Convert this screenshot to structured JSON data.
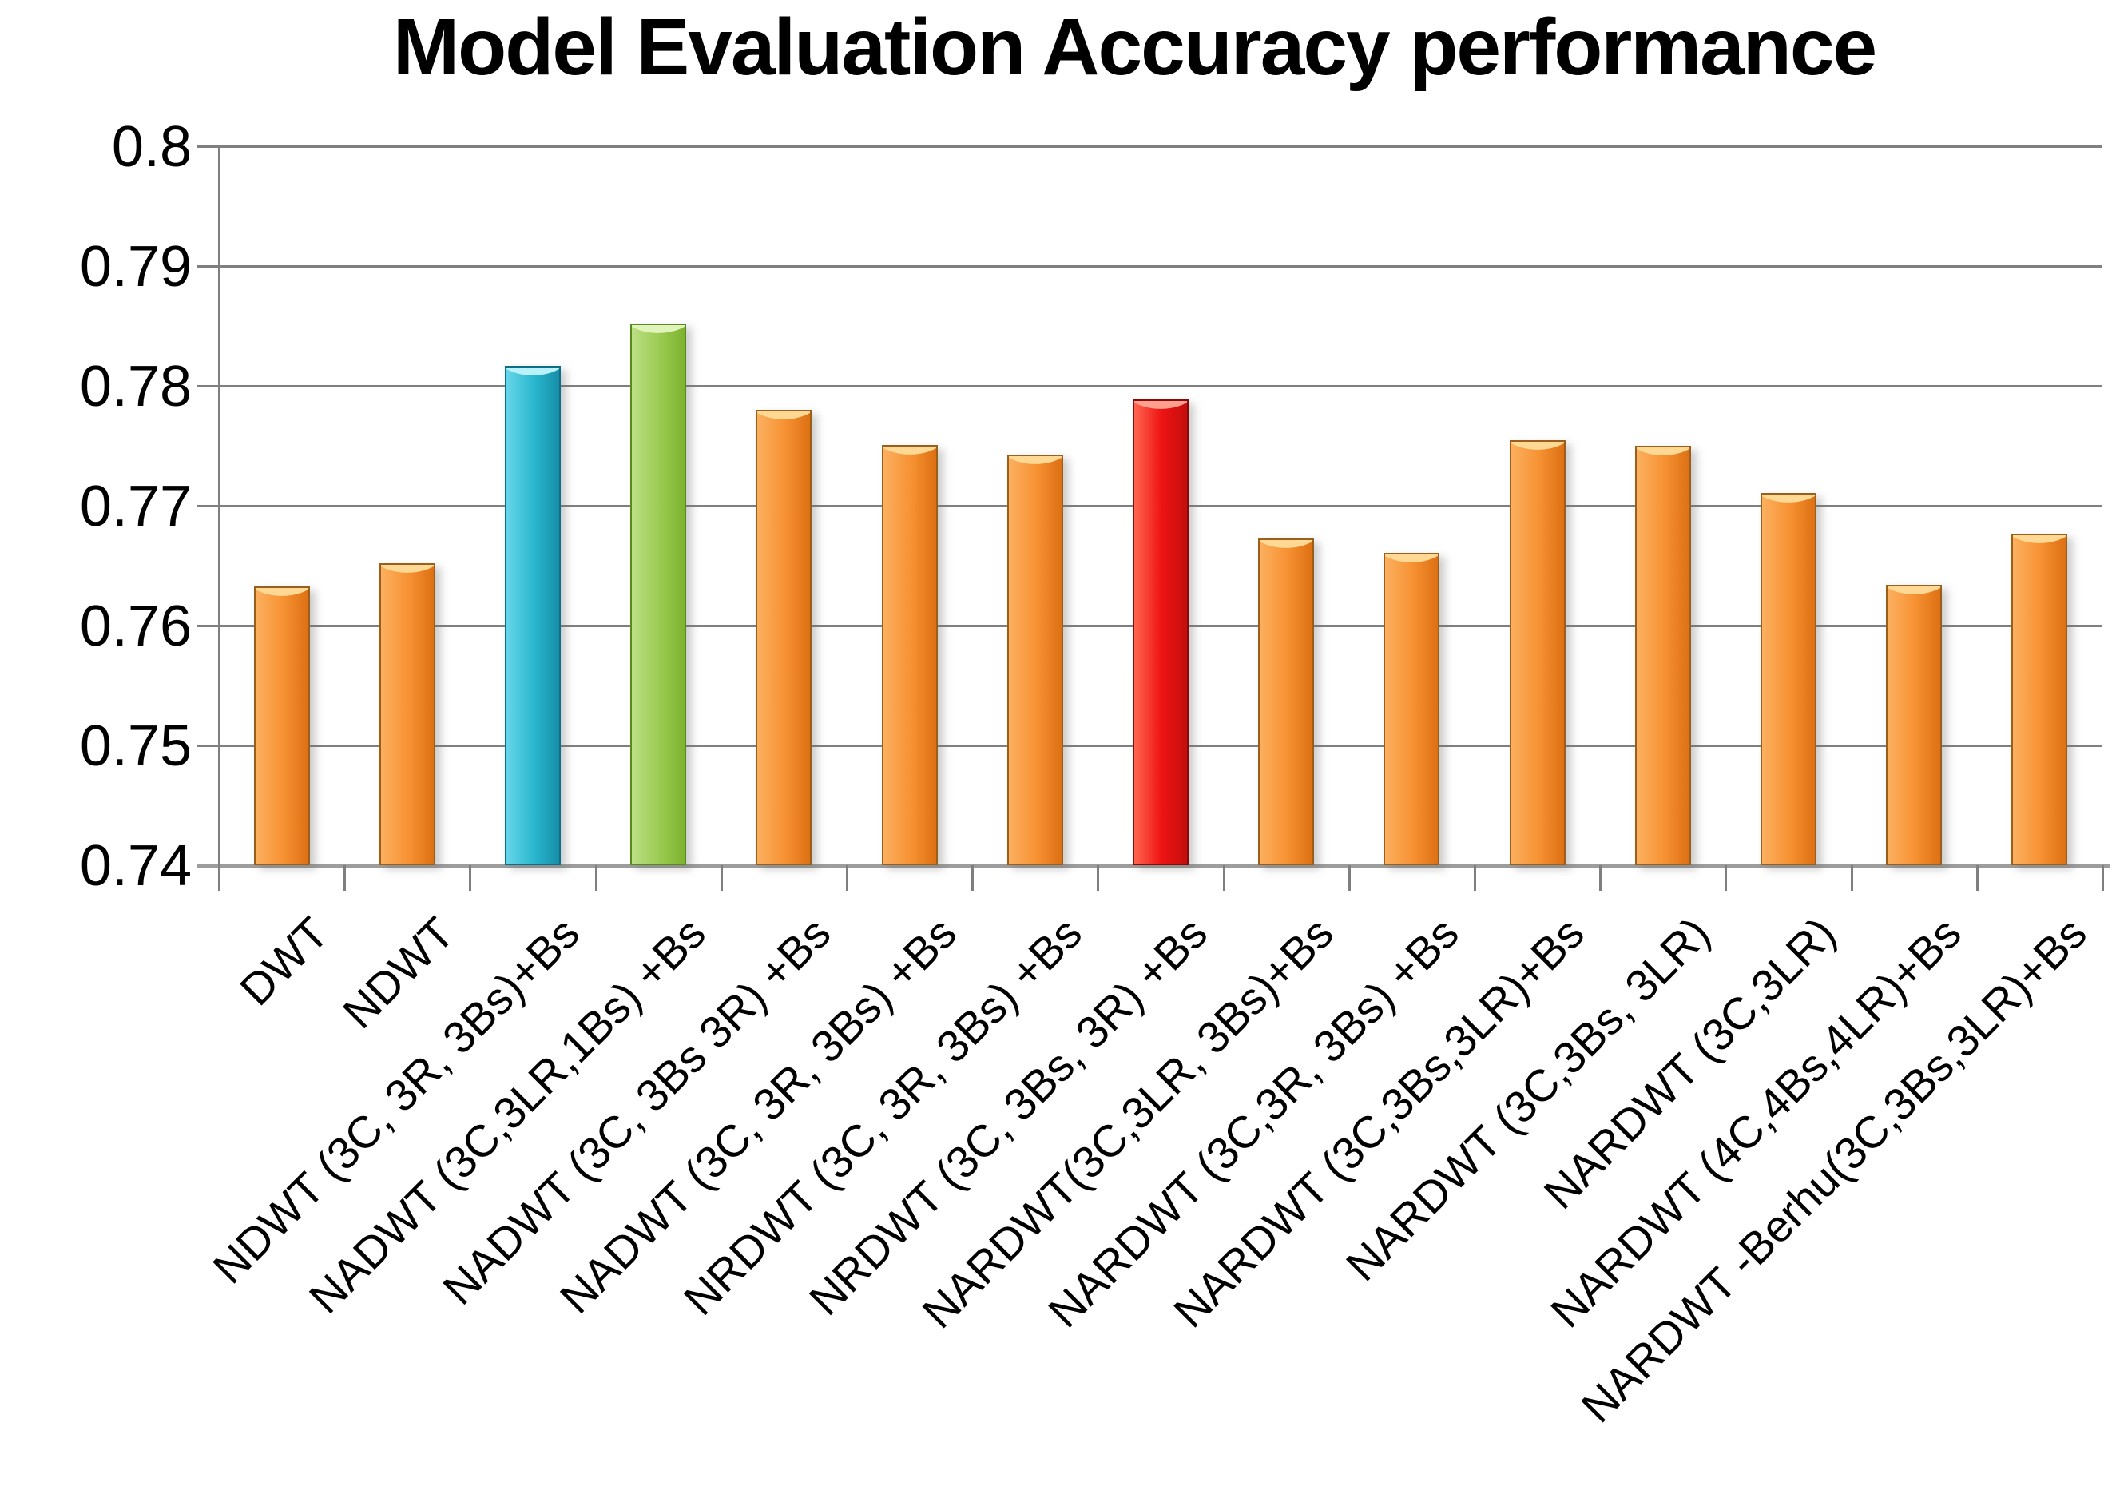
{
  "title": "Model Evaluation Accuracy performance",
  "chart_data": {
    "type": "bar",
    "title": "Model Evaluation Accuracy performance",
    "xlabel": "",
    "ylabel": "",
    "ylim": [
      0.74,
      0.8
    ],
    "grid": true,
    "legend": false,
    "yticks": [
      0.74,
      0.75,
      0.76,
      0.77,
      0.78,
      0.79,
      0.8
    ],
    "ytick_labels": [
      "0.74",
      "0.75",
      "0.76",
      "0.77",
      "0.78",
      "0.79",
      "0.8"
    ],
    "categories": [
      "DWT",
      "NDWT",
      "NDWT (3C, 3R, 3Bs)+Bs",
      "NADWT (3C,3LR,1Bs) +Bs",
      "NADWT (3C, 3Bs 3R) +Bs",
      "NADWT (3C, 3R, 3Bs) +Bs",
      "NRDWT (3C, 3R, 3Bs) +Bs",
      "NRDWT (3C, 3Bs, 3R) +Bs",
      "NARDWT(3C,3LR, 3Bs)+Bs",
      "NARDWT (3C,3R, 3Bs) +Bs",
      "NARDWT (3C,3Bs,3LR)+Bs",
      "NARDWT (3C,3Bs, 3LR)",
      "NARDWT (3C,3LR)",
      "NARDWT (4C,4Bs,4LR)+Bs",
      "NARDWT -Berhu(3C,3Bs,3LR)+Bs"
    ],
    "values": [
      0.7633,
      0.7652,
      0.7817,
      0.7852,
      0.778,
      0.7751,
      0.7743,
      0.7789,
      0.7673,
      0.7661,
      0.7755,
      0.775,
      0.7711,
      0.7634,
      0.7677
    ],
    "bar_colors": [
      "orange",
      "orange",
      "cyan",
      "green",
      "orange",
      "orange",
      "orange",
      "red",
      "orange",
      "orange",
      "orange",
      "orange",
      "orange",
      "orange",
      "orange"
    ],
    "palette": {
      "orange": {
        "light": "#fbb060",
        "mid": "#f79233",
        "dark": "#dd7014",
        "cap": "#ffd994",
        "border": "#9a5f1a"
      },
      "cyan": {
        "light": "#66d6e9",
        "mid": "#2ab7cf",
        "dark": "#168ea8",
        "cap": "#baf1fa",
        "border": "#0e6e86"
      },
      "green": {
        "light": "#bcdf86",
        "mid": "#9ccb52",
        "dark": "#7cb32f",
        "cap": "#e0f3ba",
        "border": "#5a8a1d"
      },
      "red": {
        "light": "#ff6550",
        "mid": "#ee1313",
        "dark": "#c40e0e",
        "cap": "#ffa08e",
        "border": "#880909"
      }
    },
    "grid_color": "#7f7f7f",
    "axis_color": "#9d9d9d",
    "text_color": "#000000"
  }
}
